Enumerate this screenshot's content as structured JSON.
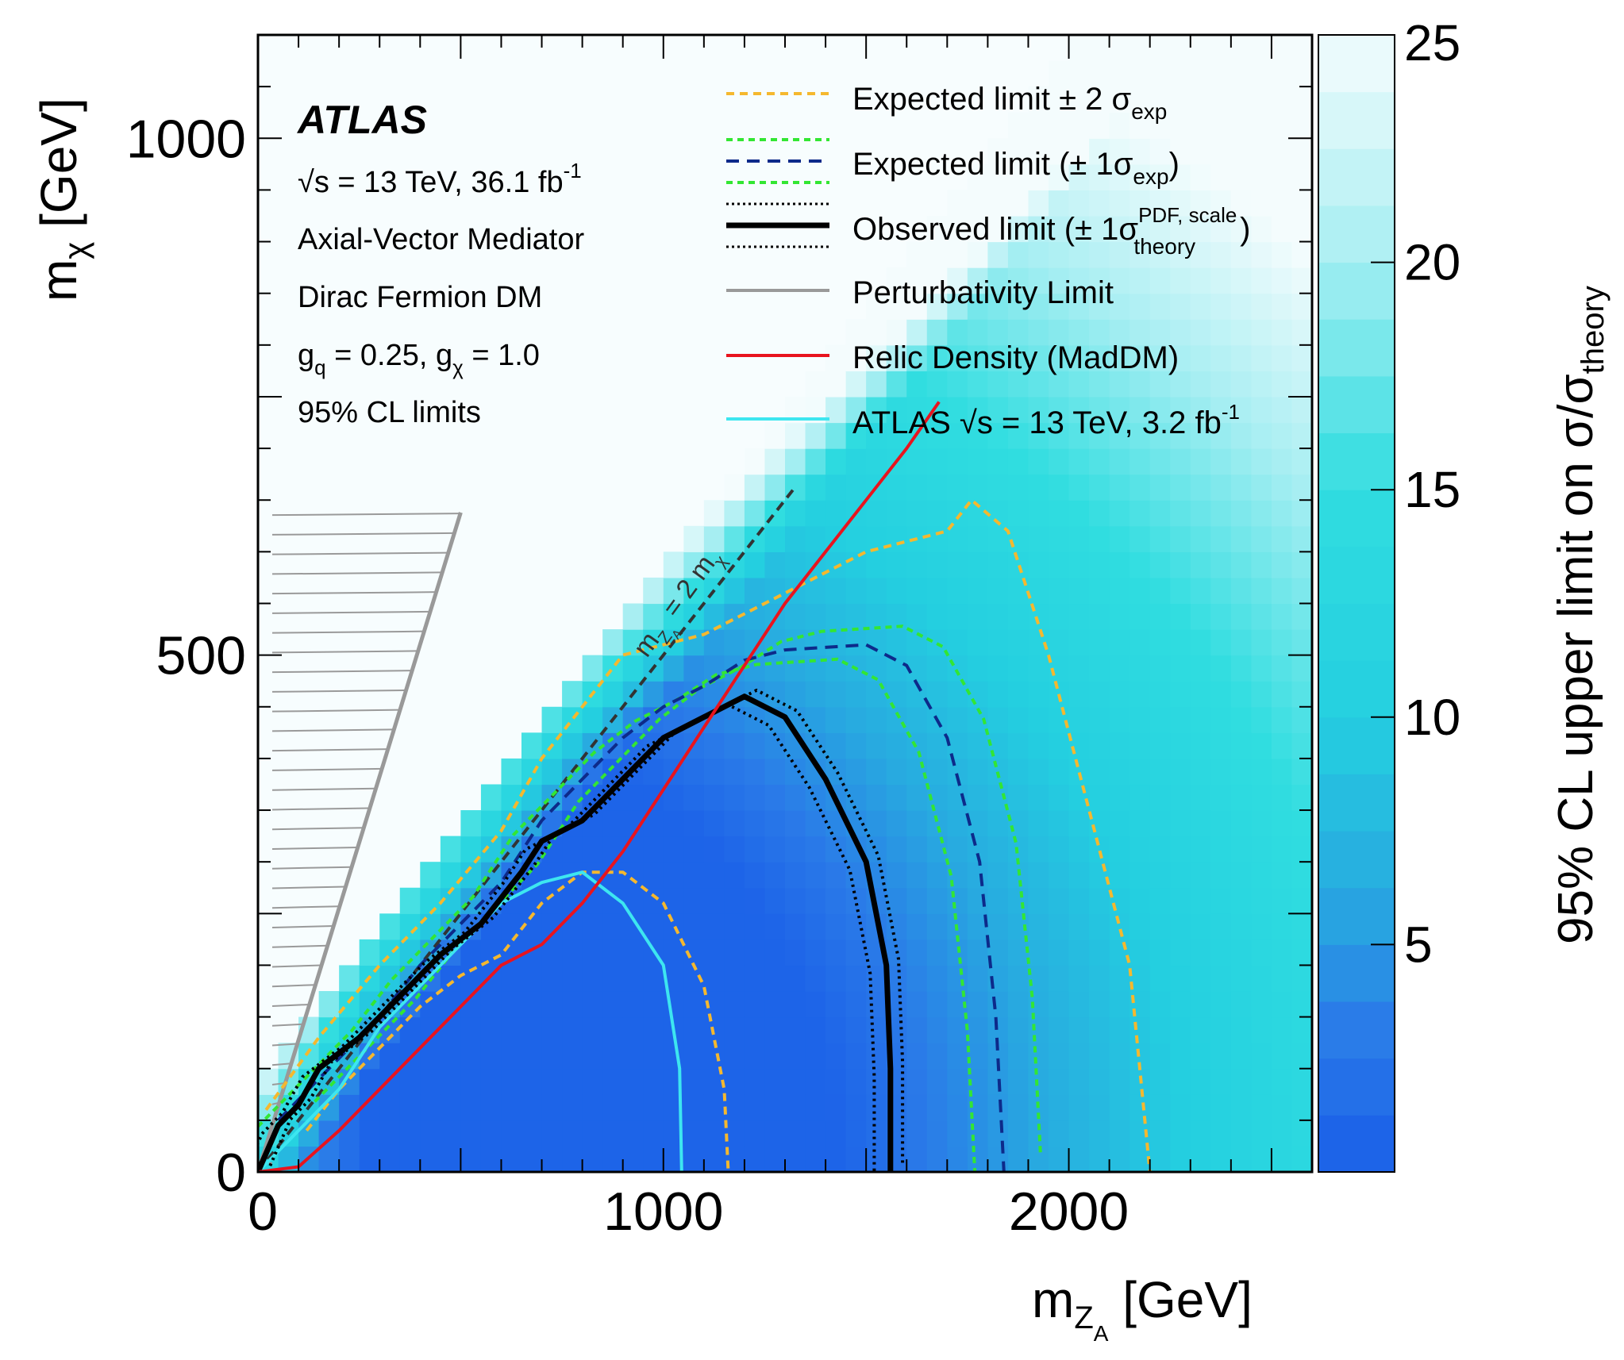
{
  "chart_data": {
    "type": "heatmap",
    "experiment": "ATLAS",
    "energy_lumi": "√s = 13 TeV, 36.1 fb",
    "energy_lumi_sup": "-1",
    "model_lines": [
      "Axial-Vector Mediator",
      "Dirac Fermion DM"
    ],
    "couplings": {
      "gq": "g",
      "gq_sub": "q",
      "gq_val": " = 0.25, g",
      "gchi_sub": "χ",
      "gchi_val": " = 1.0"
    },
    "cl_text": "95% CL limits",
    "xlabel": {
      "main": "m",
      "sub1": "Z",
      "sub2": "A",
      "unit": " [GeV]"
    },
    "ylabel": {
      "main": "m",
      "sub": "χ",
      "unit": " [GeV]"
    },
    "zlabel": {
      "main": "95% CL upper limit on σ/σ",
      "sub": "theory"
    },
    "xlim": [
      0,
      2600
    ],
    "ylim": [
      0,
      1100
    ],
    "zlim": [
      0,
      25
    ],
    "x_ticks": [
      0,
      1000,
      2000
    ],
    "y_ticks": [
      0,
      500,
      1000
    ],
    "z_ticks": [
      5,
      10,
      15,
      20,
      25
    ],
    "diagonal_label": {
      "pre": "m",
      "sub": "Z",
      "sub2": "A",
      "post": " = 2 m",
      "sub3": "χ"
    },
    "legend": [
      {
        "label": "Expected limit ± 2 σ",
        "sub": "exp",
        "style": "dashed-yellow"
      },
      {
        "label": "Expected limit (± 1σ",
        "sub": "exp",
        "post": ")",
        "style": "dashed-navy-with-green"
      },
      {
        "label": "Observed limit (± 1σ",
        "sup": "PDF, scale",
        "sub": "theory",
        "post": ")",
        "style": "solid-black-with-dotted"
      },
      {
        "label": "Perturbativity Limit",
        "style": "solid-gray"
      },
      {
        "label": "Relic Density (MadDM)",
        "style": "solid-red"
      },
      {
        "label": "ATLAS √s = 13 TeV, 3.2 fb",
        "sup": "-1",
        "style": "solid-cyan"
      }
    ],
    "colors": {
      "expected_2sigma": "#f5b82e",
      "expected_1sigma_band": "#33e633",
      "expected": "#0d2a8a",
      "observed": "#000000",
      "perturbativity": "#999999",
      "relic": "#e8141e",
      "atlas_3p2": "#3de6f0",
      "diagonal": "#333333"
    },
    "observed_limit": [
      [
        0,
        0
      ],
      [
        50,
        45
      ],
      [
        100,
        65
      ],
      [
        150,
        100
      ],
      [
        250,
        130
      ],
      [
        350,
        170
      ],
      [
        450,
        210
      ],
      [
        550,
        240
      ],
      [
        650,
        290
      ],
      [
        700,
        320
      ],
      [
        800,
        340
      ],
      [
        900,
        380
      ],
      [
        950,
        400
      ],
      [
        1000,
        420
      ],
      [
        1100,
        440
      ],
      [
        1200,
        460
      ],
      [
        1300,
        440
      ],
      [
        1400,
        380
      ],
      [
        1500,
        300
      ],
      [
        1550,
        200
      ],
      [
        1560,
        100
      ],
      [
        1560,
        0
      ]
    ],
    "expected_limit": [
      [
        50,
        50
      ],
      [
        200,
        110
      ],
      [
        300,
        150
      ],
      [
        400,
        200
      ],
      [
        500,
        240
      ],
      [
        600,
        280
      ],
      [
        700,
        340
      ],
      [
        800,
        380
      ],
      [
        900,
        420
      ],
      [
        1000,
        450
      ],
      [
        1100,
        470
      ],
      [
        1200,
        495
      ],
      [
        1300,
        505
      ],
      [
        1500,
        510
      ],
      [
        1600,
        490
      ],
      [
        1700,
        420
      ],
      [
        1780,
        300
      ],
      [
        1820,
        150
      ],
      [
        1840,
        0
      ]
    ],
    "expected_plus2": [
      [
        120,
        40
      ],
      [
        200,
        80
      ],
      [
        300,
        120
      ],
      [
        400,
        160
      ],
      [
        500,
        190
      ],
      [
        600,
        210
      ],
      [
        700,
        260
      ],
      [
        800,
        290
      ],
      [
        900,
        290
      ],
      [
        1000,
        260
      ],
      [
        1100,
        180
      ],
      [
        1150,
        80
      ],
      [
        1160,
        0
      ]
    ],
    "expected_minus2": [
      [
        20,
        60
      ],
      [
        150,
        130
      ],
      [
        300,
        200
      ],
      [
        450,
        260
      ],
      [
        600,
        330
      ],
      [
        700,
        400
      ],
      [
        800,
        450
      ],
      [
        900,
        500
      ],
      [
        1100,
        520
      ],
      [
        1300,
        560
      ],
      [
        1500,
        600
      ],
      [
        1700,
        620
      ],
      [
        1760,
        650
      ],
      [
        1850,
        620
      ],
      [
        1950,
        500
      ],
      [
        2050,
        350
      ],
      [
        2150,
        200
      ],
      [
        2200,
        0
      ]
    ],
    "relic_density": [
      [
        0,
        0
      ],
      [
        100,
        5
      ],
      [
        200,
        40
      ],
      [
        300,
        80
      ],
      [
        400,
        120
      ],
      [
        500,
        160
      ],
      [
        600,
        200
      ],
      [
        700,
        220
      ],
      [
        800,
        260
      ],
      [
        900,
        310
      ],
      [
        1000,
        370
      ],
      [
        1100,
        430
      ],
      [
        1200,
        490
      ],
      [
        1300,
        550
      ],
      [
        1400,
        600
      ],
      [
        1500,
        650
      ],
      [
        1600,
        700
      ],
      [
        1680,
        745
      ]
    ],
    "atlas_3p2": [
      [
        0,
        0
      ],
      [
        100,
        40
      ],
      [
        200,
        80
      ],
      [
        300,
        140
      ],
      [
        400,
        180
      ],
      [
        500,
        220
      ],
      [
        600,
        260
      ],
      [
        700,
        280
      ],
      [
        800,
        290
      ],
      [
        900,
        260
      ],
      [
        1000,
        200
      ],
      [
        1040,
        100
      ],
      [
        1045,
        0
      ]
    ],
    "perturbativity": [
      [
        0,
        0
      ],
      [
        500,
        638
      ]
    ],
    "diagonal": [
      [
        0,
        0
      ],
      [
        1320,
        660
      ]
    ],
    "grid_note": "heatmap cells color-coded by cross-section limit"
  }
}
